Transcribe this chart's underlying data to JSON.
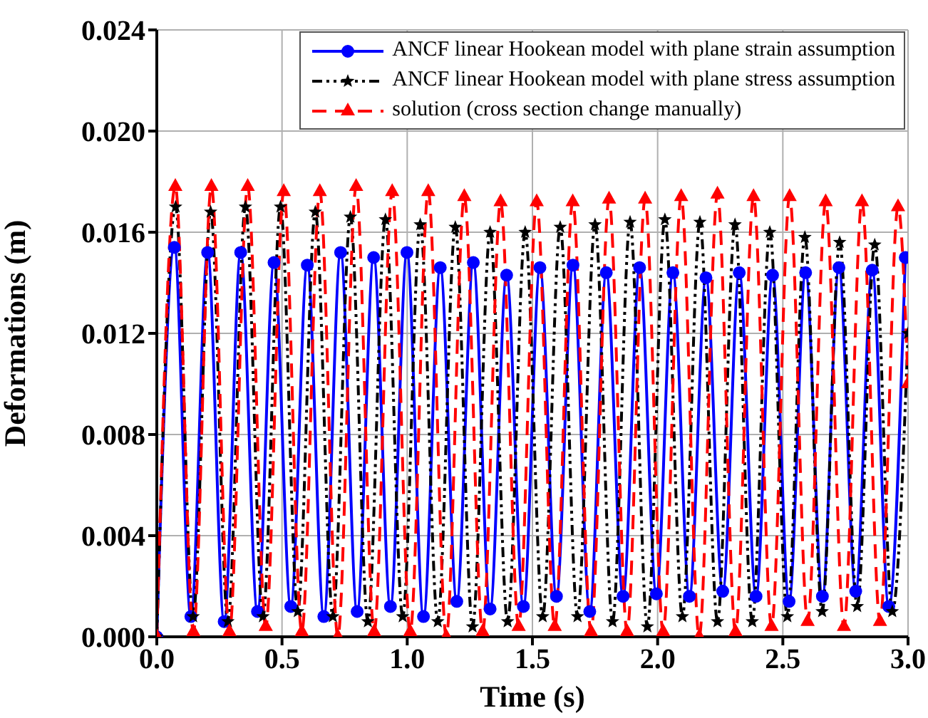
{
  "chart_data": {
    "type": "line",
    "xlabel": "Time (s)",
    "ylabel": "Deformations (m)",
    "xlim": [
      0,
      3
    ],
    "xticks": [
      {
        "value": 0,
        "label": "0.0"
      },
      {
        "value": 0.5,
        "label": "0.5"
      },
      {
        "value": 1,
        "label": "1.0"
      },
      {
        "value": 1.5,
        "label": "1.5"
      },
      {
        "value": 2,
        "label": "2.0"
      },
      {
        "value": 2.5,
        "label": "2.5"
      },
      {
        "value": 3,
        "label": "3.0"
      }
    ],
    "ylim": [
      0,
      0.024
    ],
    "yticks": [
      {
        "value": 0,
        "label": "0.000"
      },
      {
        "value": 0.004,
        "label": "0.004"
      },
      {
        "value": 0.008,
        "label": "0.008"
      },
      {
        "value": 0.012,
        "label": "0.012"
      },
      {
        "value": 0.016,
        "label": "0.016"
      },
      {
        "value": 0.02,
        "label": "0.020"
      },
      {
        "value": 0.024,
        "label": "0.024"
      }
    ],
    "grid": true,
    "legend": "top right",
    "series": [
      {
        "name": "ANCF linear Hookean model with plane strain assumption",
        "color": "#0000ff",
        "marker": "circle",
        "line_style": "solid",
        "x": [
          0,
          0.07,
          0.136,
          0.203,
          0.269,
          0.335,
          0.402,
          0.468,
          0.535,
          0.601,
          0.667,
          0.734,
          0.8,
          0.866,
          0.933,
          0.999,
          1.065,
          1.132,
          1.198,
          1.264,
          1.331,
          1.397,
          1.464,
          1.53,
          1.596,
          1.662,
          1.729,
          1.795,
          1.862,
          1.928,
          1.995,
          2.061,
          2.127,
          2.193,
          2.26,
          2.326,
          2.393,
          2.459,
          2.525,
          2.591,
          2.658,
          2.724,
          2.791,
          2.857,
          2.923,
          2.989
        ],
        "values": [
          0,
          0.0154,
          0.0008,
          0.0152,
          0.0006,
          0.0152,
          0.001,
          0.0148,
          0.0012,
          0.0147,
          0.0008,
          0.0152,
          0.001,
          0.015,
          0.0012,
          0.0152,
          0.0008,
          0.0146,
          0.0014,
          0.0148,
          0.0011,
          0.0143,
          0.0012,
          0.0146,
          0.0016,
          0.0147,
          0.001,
          0.0144,
          0.0016,
          0.0146,
          0.0017,
          0.0144,
          0.0016,
          0.0142,
          0.0018,
          0.0144,
          0.0016,
          0.0143,
          0.0014,
          0.0144,
          0.0016,
          0.0146,
          0.0018,
          0.0145,
          0.0012,
          0.015
        ]
      },
      {
        "name": "ANCF linear Hookean model with plane stress assumption",
        "color": "#000000",
        "marker": "star",
        "line_style": "dotted",
        "x": [
          0,
          0.075,
          0.145,
          0.215,
          0.284,
          0.354,
          0.424,
          0.494,
          0.563,
          0.633,
          0.703,
          0.773,
          0.843,
          0.913,
          0.982,
          1.052,
          1.122,
          1.192,
          1.261,
          1.331,
          1.401,
          1.471,
          1.541,
          1.611,
          1.68,
          1.75,
          1.82,
          1.89,
          1.959,
          2.029,
          2.099,
          2.169,
          2.239,
          2.309,
          2.378,
          2.448,
          2.518,
          2.588,
          2.657,
          2.727,
          2.797,
          2.867,
          2.937,
          3.0
        ],
        "values": [
          0,
          0.017,
          0.0008,
          0.0168,
          0.0006,
          0.017,
          0.0008,
          0.017,
          0.001,
          0.0168,
          0.0008,
          0.0166,
          0.0006,
          0.0165,
          0.0008,
          0.0163,
          0.0006,
          0.0162,
          0.0004,
          0.016,
          0.0006,
          0.016,
          0.0008,
          0.0162,
          0.0008,
          0.0163,
          0.0006,
          0.0164,
          0.0004,
          0.0165,
          0.0008,
          0.0164,
          0.0006,
          0.0163,
          0.0006,
          0.016,
          0.0008,
          0.0158,
          0.001,
          0.0156,
          0.0012,
          0.0155,
          0.001,
          0.012
        ]
      },
      {
        "name": "solution (cross section change manually)",
        "color": "#ff0000",
        "marker": "triangle",
        "line_style": "dashed",
        "x": [
          0,
          0.074,
          0.146,
          0.218,
          0.29,
          0.363,
          0.435,
          0.507,
          0.579,
          0.651,
          0.723,
          0.796,
          0.868,
          0.94,
          1.012,
          1.084,
          1.156,
          1.228,
          1.301,
          1.373,
          1.445,
          1.517,
          1.589,
          1.661,
          1.734,
          1.806,
          1.878,
          1.95,
          2.022,
          2.094,
          2.166,
          2.239,
          2.311,
          2.383,
          2.455,
          2.527,
          2.599,
          2.671,
          2.744,
          2.816,
          2.888,
          2.96,
          3.0
        ],
        "values": [
          0,
          0.0178,
          0.0002,
          0.0178,
          0.0002,
          0.0178,
          0.0004,
          0.0176,
          0.0002,
          0.0176,
          0.0,
          0.0178,
          0.0002,
          0.0176,
          0.0002,
          0.0176,
          0.0,
          0.0174,
          0.0002,
          0.0172,
          0.0004,
          0.0172,
          0.0004,
          0.0172,
          0.0002,
          0.0173,
          0.0002,
          0.0173,
          0.0002,
          0.0174,
          0.0,
          0.0175,
          0.0002,
          0.0174,
          0.0004,
          0.0174,
          0.0006,
          0.0172,
          0.0004,
          0.0172,
          0.0006,
          0.017,
          0.01
        ]
      }
    ]
  }
}
